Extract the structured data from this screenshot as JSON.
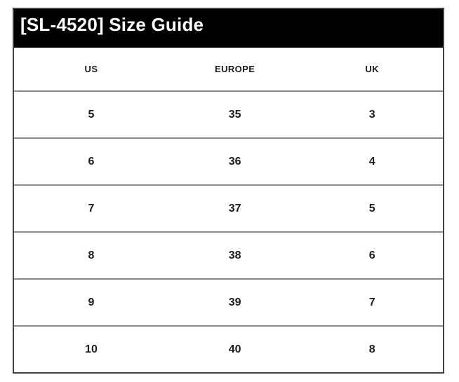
{
  "title": "[SL-4520] Size Guide",
  "table": {
    "columns": [
      "US",
      "EUROPE",
      "UK"
    ],
    "rows": [
      [
        "5",
        "35",
        "3"
      ],
      [
        "6",
        "36",
        "4"
      ],
      [
        "7",
        "37",
        "5"
      ],
      [
        "8",
        "38",
        "6"
      ],
      [
        "9",
        "39",
        "7"
      ],
      [
        "10",
        "40",
        "8"
      ]
    ]
  },
  "colors": {
    "header_bar_bg": "#000000",
    "header_bar_text": "#ffffff",
    "cell_text": "#1c1c1c",
    "row_divider": "#8c8c8c",
    "outer_border": "#424242",
    "page_bg": "#ffffff"
  }
}
